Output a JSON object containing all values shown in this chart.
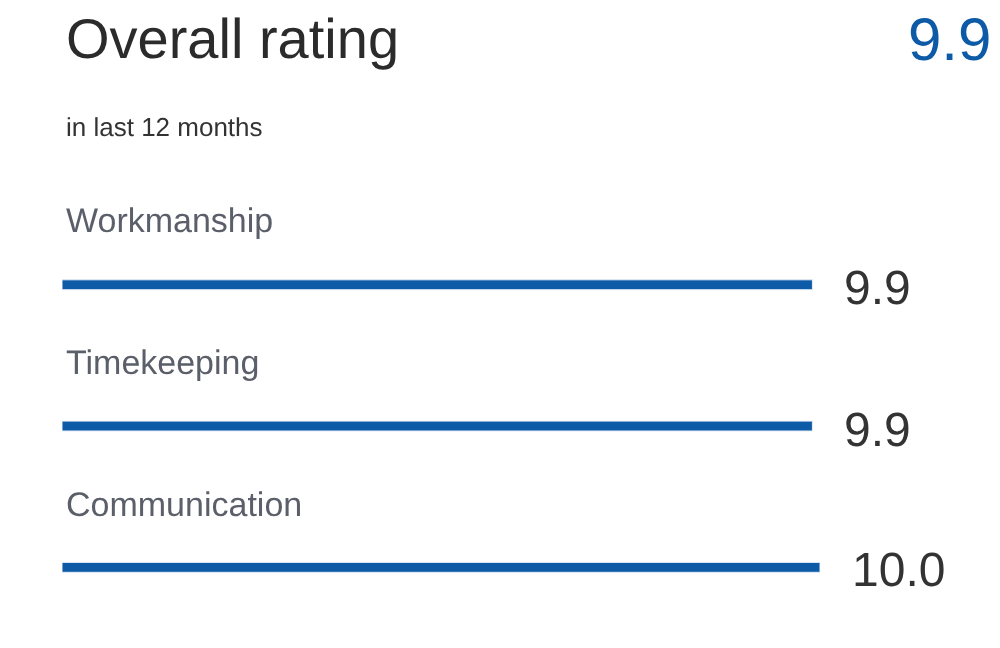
{
  "chart_data": {
    "type": "bar",
    "orientation": "horizontal",
    "title": "Overall rating",
    "subtitle": "in last 12 months",
    "annotations": [
      "9.9"
    ],
    "categories": [
      "Workmanship",
      "Timekeeping",
      "Communication"
    ],
    "values": [
      9.9,
      9.9,
      10.0
    ],
    "color": "#0d5aa7",
    "xlim": [
      0,
      10
    ],
    "value_labels": [
      "9.9",
      "9.9",
      "10.0"
    ],
    "legend": false,
    "tick_labels": false
  }
}
